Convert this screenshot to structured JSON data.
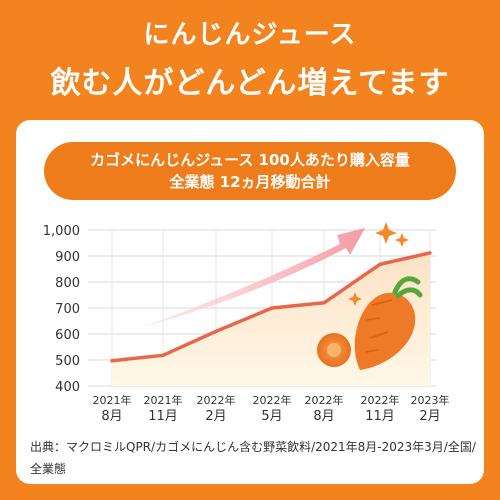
{
  "header": {
    "subtitle": "にんじんジュース",
    "title": "飲む人がどんどん増えてます"
  },
  "chart_caption": {
    "line1": "カゴメにんじんジュース 100人あたり購入容量",
    "line2": "全業態 12ヵ月移動合計"
  },
  "chart_data": {
    "type": "area",
    "categories": [
      "2021年 8月",
      "2021年 11月",
      "2022年 2月",
      "2022年 5月",
      "2022年 8月",
      "2022年 11月",
      "2023年 2月"
    ],
    "x_ticks": [
      {
        "year": "2021年",
        "month": "8月"
      },
      {
        "year": "2021年",
        "month": "11月"
      },
      {
        "year": "2022年",
        "month": "2月"
      },
      {
        "year": "2022年",
        "month": "5月"
      },
      {
        "year": "2022年",
        "month": "8月"
      },
      {
        "year": "2022年",
        "month": "11月"
      },
      {
        "year": "2023年",
        "month": "2月"
      }
    ],
    "series": [
      {
        "values": [
          497,
          518,
          610,
          700,
          720,
          868,
          912
        ]
      }
    ],
    "yticks": [
      "400",
      "500",
      "600",
      "700",
      "800",
      "900",
      "1,000"
    ],
    "ylim": [
      400,
      1000
    ],
    "grid": true,
    "colors": {
      "line": "#e8674a",
      "area_top": "#fde2c4",
      "area_bottom": "#fff8e8",
      "arrow": "#f7b3b3"
    }
  },
  "source": "出典：マクロミルQPR/カゴメにんじん含む野菜飲料/2021年8月-2023年3月/全国/全業態",
  "decorations": [
    "sparkle-icon",
    "carrot-illustration"
  ]
}
